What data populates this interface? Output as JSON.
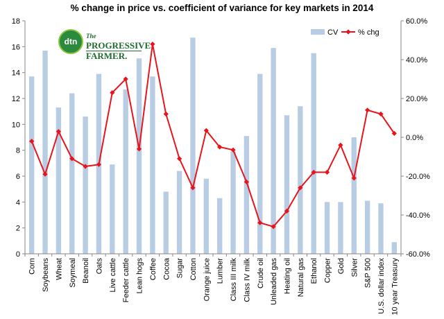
{
  "title": "%  change in price vs. coefficient of variance for key markets in 2014",
  "logo": {
    "badge": "dtn",
    "the": "The",
    "line1": "PROGRESSIVE",
    "line2": "FARMER."
  },
  "colors": {
    "bar": "#b8cce4",
    "line": "#e8141b",
    "axis": "#868686",
    "grid": "#bfbfbf"
  },
  "chart_data": {
    "type": "bar",
    "categories": [
      "Corn",
      "Soybeans",
      "Wheat",
      "Soymeal",
      "Beanoil",
      "Oats",
      "Live cattle",
      "Feeder cattle",
      "Lean hogs",
      "Coffee",
      "Cocoa",
      "Sugar",
      "Cotton",
      "Orange juice",
      "Lumber",
      "Class III milk",
      "Class IV milk",
      "Crude oil",
      "Unleaded gas",
      "Heating oil",
      "Natural gas",
      "Ethanol",
      "Copper",
      "Gold",
      "Silver",
      "S&P 500",
      "U.S. dollar index",
      "10 year Treasury"
    ],
    "series": [
      {
        "name": "CV",
        "type": "bar",
        "axis": "left",
        "values": [
          13.7,
          15.7,
          11.3,
          12.4,
          10.6,
          13.9,
          6.9,
          12.7,
          15.1,
          13.7,
          4.8,
          6.4,
          16.7,
          5.8,
          4.3,
          7.9,
          9.1,
          13.9,
          15.9,
          10.7,
          11.4,
          15.5,
          4.0,
          4.0,
          9.0,
          4.1,
          3.9,
          0.9
        ]
      },
      {
        "name": "% chg",
        "type": "line",
        "axis": "right",
        "values": [
          -2,
          -19,
          3,
          -11,
          -15,
          -14,
          23,
          30,
          -6,
          48,
          12,
          -11,
          -26,
          3.5,
          -5,
          -6.5,
          -23,
          -44,
          -46,
          -38,
          -26,
          -18,
          -18,
          -4,
          -21,
          14,
          12,
          2
        ]
      }
    ],
    "left_axis": {
      "ylim": [
        0,
        18
      ],
      "ticks": [
        "0",
        "2",
        "4",
        "6",
        "8",
        "10",
        "12",
        "14",
        "16",
        "18"
      ]
    },
    "right_axis": {
      "ylim": [
        -60,
        60
      ],
      "ticks": [
        "-60.0%",
        "-40.0%",
        "-20.0%",
        "0.0%",
        "20.0%",
        "40.0%",
        "60.0%"
      ]
    },
    "legend_position": "top-right",
    "grid": false
  }
}
